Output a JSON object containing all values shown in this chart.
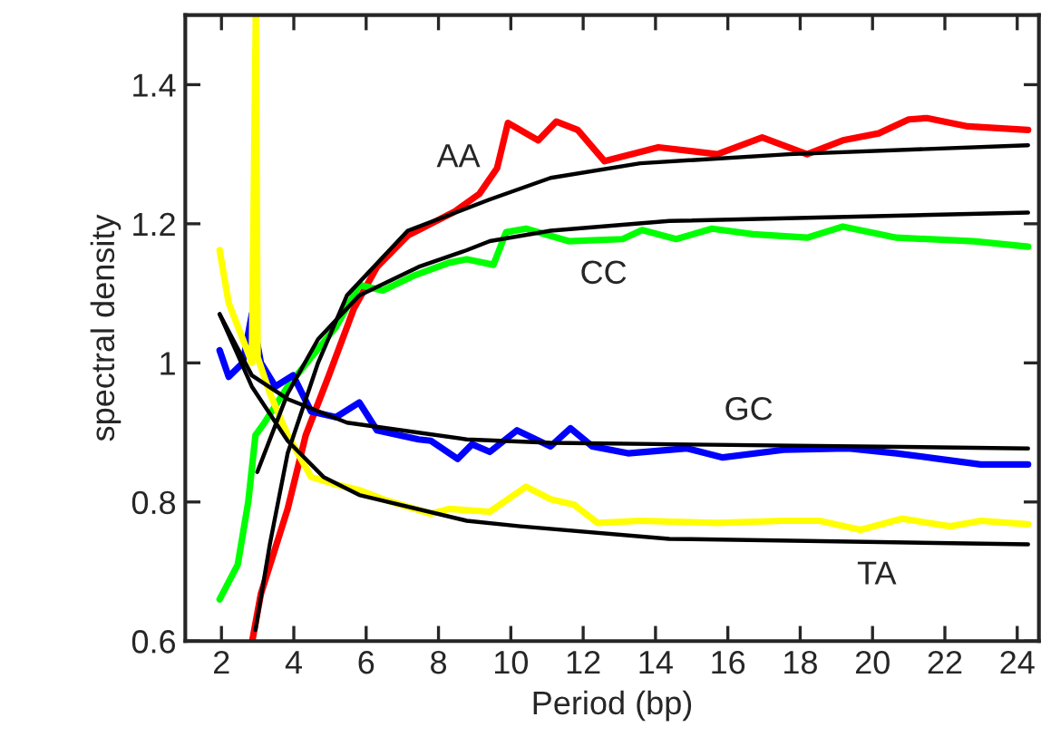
{
  "chart_data": {
    "type": "line",
    "xlabel": "Period (bp)",
    "ylabel": "spectral density",
    "xlim": [
      1,
      24.6
    ],
    "ylim": [
      0.6,
      1.5
    ],
    "xticks": [
      2,
      4,
      6,
      8,
      10,
      12,
      14,
      16,
      18,
      20,
      22,
      24
    ],
    "yticks": [
      0.6,
      0.8,
      1,
      1.2,
      1.4
    ],
    "grid": false,
    "legend": false,
    "marker": "none",
    "line_style": "solid",
    "series": [
      {
        "name": "AA",
        "color": "#ff0000",
        "x": [
          2.85,
          3.09,
          3.83,
          4.33,
          4.97,
          5.66,
          6.3,
          7.15,
          7.79,
          8.43,
          9.13,
          9.62,
          9.92,
          10.76,
          11.26,
          11.85,
          12.59,
          14.08,
          15.71,
          16.95,
          18.19,
          19.18,
          20.17,
          21.0,
          21.5,
          22.64,
          24.3
        ],
        "values": [
          0.6,
          0.668,
          0.79,
          0.896,
          0.982,
          1.078,
          1.138,
          1.183,
          1.2,
          1.217,
          1.243,
          1.28,
          1.345,
          1.32,
          1.347,
          1.335,
          1.29,
          1.31,
          1.3,
          1.324,
          1.3,
          1.32,
          1.33,
          1.35,
          1.352,
          1.34,
          1.335
        ]
      },
      {
        "name": "CC",
        "color": "#00ff00",
        "x": [
          1.95,
          2.45,
          2.74,
          2.94,
          3.19,
          3.83,
          4.48,
          5.17,
          5.81,
          6.46,
          7.3,
          8.29,
          8.78,
          9.52,
          9.87,
          10.42,
          11.6,
          13.09,
          13.63,
          14.57,
          15.56,
          16.7,
          18.19,
          19.18,
          20.66,
          22.8,
          24.3
        ],
        "values": [
          0.66,
          0.71,
          0.8,
          0.896,
          0.914,
          0.966,
          1.008,
          1.052,
          1.112,
          1.104,
          1.125,
          1.144,
          1.149,
          1.141,
          1.188,
          1.193,
          1.175,
          1.178,
          1.191,
          1.178,
          1.193,
          1.185,
          1.18,
          1.196,
          1.18,
          1.175,
          1.167
        ]
      },
      {
        "name": "GC",
        "color": "#0000ff",
        "x": [
          1.95,
          2.2,
          2.59,
          2.84,
          3.09,
          3.49,
          3.98,
          4.48,
          5.17,
          5.81,
          6.3,
          7.45,
          7.79,
          8.53,
          8.93,
          9.42,
          10.17,
          11.1,
          11.65,
          12.25,
          13.24,
          14.87,
          15.86,
          17.54,
          19.33,
          20.66,
          22.99,
          24.3
        ],
        "values": [
          1.018,
          0.98,
          1.0,
          1.07,
          1.0,
          0.966,
          0.982,
          0.93,
          0.922,
          0.943,
          0.903,
          0.89,
          0.888,
          0.862,
          0.883,
          0.872,
          0.903,
          0.88,
          0.906,
          0.88,
          0.87,
          0.877,
          0.864,
          0.875,
          0.877,
          0.87,
          0.854,
          0.854
        ]
      },
      {
        "name": "TA",
        "color": "#ffff00",
        "x": [
          1.95,
          2.2,
          2.59,
          2.84,
          2.95,
          3.0,
          3.34,
          3.83,
          4.48,
          5.17,
          5.81,
          6.46,
          7.79,
          8.29,
          9.42,
          10.42,
          11.1,
          11.75,
          12.4,
          13.58,
          15.71,
          17.54,
          18.53,
          19.67,
          20.81,
          22.15,
          22.99,
          24.3
        ],
        "values": [
          1.162,
          1.086,
          1.034,
          1.0,
          1.5,
          1.008,
          0.956,
          0.896,
          0.836,
          0.825,
          0.817,
          0.804,
          0.783,
          0.79,
          0.786,
          0.822,
          0.804,
          0.796,
          0.77,
          0.773,
          0.77,
          0.773,
          0.773,
          0.76,
          0.776,
          0.765,
          0.773,
          0.768
        ]
      },
      {
        "color": "#000000",
        "x": [
          2.94,
          3.34,
          3.83,
          4.67,
          5.47,
          7.15,
          9.42,
          11.1,
          13.58,
          17.69,
          24.3
        ],
        "values": [
          0.616,
          0.74,
          0.87,
          1.0,
          1.097,
          1.19,
          1.235,
          1.266,
          1.287,
          1.3,
          1.313
        ]
      },
      {
        "color": "#000000",
        "x": [
          2.99,
          3.83,
          4.67,
          5.81,
          7.45,
          8.78,
          9.42,
          11.1,
          14.38,
          24.3
        ],
        "values": [
          0.843,
          0.956,
          1.034,
          1.097,
          1.138,
          1.162,
          1.175,
          1.19,
          1.204,
          1.216
        ]
      },
      {
        "color": "#000000",
        "x": [
          1.95,
          2.84,
          3.83,
          5.47,
          8.78,
          11.1,
          24.3
        ],
        "values": [
          1.07,
          0.982,
          0.948,
          0.914,
          0.89,
          0.885,
          0.877
        ]
      },
      {
        "color": "#000000",
        "x": [
          1.95,
          2.84,
          3.83,
          4.82,
          5.81,
          8.78,
          10.27,
          14.38,
          24.3
        ],
        "values": [
          1.07,
          0.966,
          0.888,
          0.836,
          0.81,
          0.773,
          0.765,
          0.747,
          0.739
        ]
      }
    ]
  }
}
